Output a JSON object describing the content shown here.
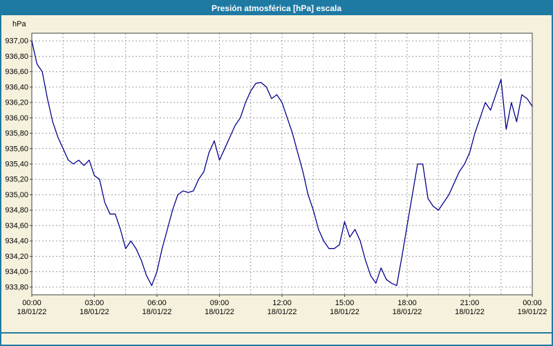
{
  "window": {
    "title": "Presión atmosférica [hPa] escala"
  },
  "colors": {
    "titlebar": "#1f7aa3",
    "background": "#f5f1dc",
    "plot_background": "#ffffff",
    "grid": "#9a9a9a",
    "axis": "#404040",
    "line": "#00008b",
    "text": "#000000"
  },
  "chart_data": {
    "type": "line",
    "title": "Presión atmosférica [hPa] escala",
    "ylabel": "hPa",
    "ylim": [
      933.7,
      937.1
    ],
    "xlim_hours": [
      0,
      24
    ],
    "grid": "dashed",
    "legend_position": "none",
    "y_tick_values": [
      937.0,
      936.8,
      936.6,
      936.4,
      936.2,
      936.0,
      935.8,
      935.6,
      935.4,
      935.2,
      935.0,
      934.8,
      934.6,
      934.4,
      934.2,
      934.0,
      933.8
    ],
    "y_tick_labels": [
      "937,00",
      "936,80",
      "936,60",
      "936,40",
      "936,20",
      "936,00",
      "935,80",
      "935,60",
      "935,40",
      "935,20",
      "935,00",
      "934,80",
      "934,60",
      "934,40",
      "934,20",
      "934,00",
      "933,80"
    ],
    "x_minor_step_hours": 1.5,
    "x_ticks": [
      {
        "hour": 0,
        "label": "00:00",
        "date": "18/01/22"
      },
      {
        "hour": 3,
        "label": "03:00",
        "date": "18/01/22"
      },
      {
        "hour": 6,
        "label": "06:00",
        "date": "18/01/22"
      },
      {
        "hour": 9,
        "label": "09:00",
        "date": "18/01/22"
      },
      {
        "hour": 12,
        "label": "12:00",
        "date": "18/01/22"
      },
      {
        "hour": 15,
        "label": "15:00",
        "date": "18/01/22"
      },
      {
        "hour": 18,
        "label": "18:00",
        "date": "18/01/22"
      },
      {
        "hour": 21,
        "label": "21:00",
        "date": "18/01/22"
      },
      {
        "hour": 24,
        "label": "00:00",
        "date": "19/01/22"
      }
    ],
    "series": [
      {
        "name": "Presión atmosférica",
        "x_start_hour": 0,
        "x_step_hours": 0.25,
        "values": [
          937.0,
          936.7,
          936.6,
          936.25,
          935.95,
          935.75,
          935.6,
          935.45,
          935.4,
          935.45,
          935.38,
          935.45,
          935.25,
          935.2,
          934.9,
          934.75,
          934.75,
          934.55,
          934.3,
          934.4,
          934.3,
          934.15,
          933.95,
          933.82,
          934.0,
          934.3,
          934.55,
          934.8,
          935.0,
          935.05,
          935.03,
          935.05,
          935.2,
          935.3,
          935.55,
          935.7,
          935.45,
          935.6,
          935.75,
          935.9,
          936.0,
          936.2,
          936.35,
          936.45,
          936.46,
          936.4,
          936.25,
          936.3,
          936.2,
          936.0,
          935.8,
          935.55,
          935.3,
          935.0,
          934.8,
          934.55,
          934.4,
          934.3,
          934.3,
          934.35,
          934.65,
          934.45,
          934.55,
          934.4,
          934.15,
          933.95,
          933.85,
          934.05,
          933.9,
          933.85,
          933.82,
          934.2,
          934.6,
          935.0,
          935.4,
          935.4,
          934.95,
          934.85,
          934.8,
          934.9,
          935.0,
          935.15,
          935.3,
          935.4,
          935.55,
          935.8,
          936.0,
          936.2,
          936.1,
          936.3,
          936.5,
          935.85,
          936.2,
          935.95,
          936.3,
          936.25,
          936.15
        ]
      }
    ]
  }
}
